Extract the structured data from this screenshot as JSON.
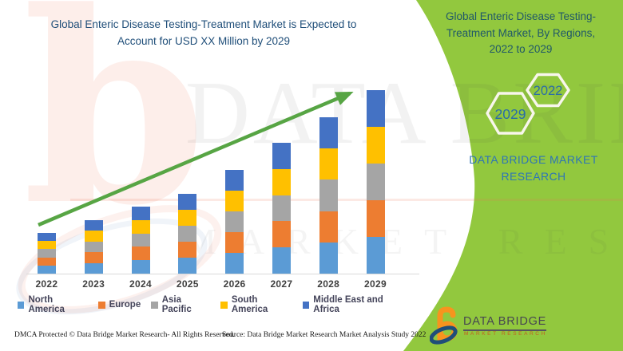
{
  "colors": {
    "panel_green": "#92C83E",
    "trend_green": "#57A544",
    "title_navy": "#1F4E79",
    "region_title_teal": "#215968",
    "brand_blue": "#2E75B6",
    "hex_year_blue": "#2A6CA8",
    "axis_label_gray": "#3F3F3F",
    "logo_orange": "#F7941E",
    "logo_navy": "#1F4E79"
  },
  "header": {
    "title_lines": [
      "Global Enteric Disease Testing-Treatment Market is Expected to",
      "Account for USD XX Million by 2029"
    ]
  },
  "chart_data": {
    "type": "bar",
    "stacked": true,
    "title": "Global Enteric Disease Testing-Treatment Market is Expected to Account for USD XX Million by 2029",
    "categories": [
      "2022",
      "2023",
      "2024",
      "2025",
      "2026",
      "2027",
      "2028",
      "2029"
    ],
    "series": [
      {
        "name": "North America",
        "color": "#5B9BD5",
        "values": [
          10.2,
          13.4,
          16.8,
          20,
          26,
          32.8,
          39.2,
          46
        ]
      },
      {
        "name": "Europe",
        "color": "#ED7D31",
        "values": [
          10.2,
          13.4,
          16.8,
          20,
          26,
          32.8,
          39.2,
          46
        ]
      },
      {
        "name": "Asia Pacific",
        "color": "#A5A5A5",
        "values": [
          10.2,
          13.4,
          16.8,
          20,
          26,
          32.8,
          39.2,
          46
        ]
      },
      {
        "name": "South America",
        "color": "#FFC000",
        "values": [
          10.2,
          13.4,
          16.8,
          20,
          26,
          32.8,
          39.2,
          46
        ]
      },
      {
        "name": "Middle East and Africa",
        "color": "#4472C4",
        "values": [
          10.2,
          13.4,
          16.8,
          20,
          26,
          32.8,
          39.2,
          46
        ]
      }
    ],
    "xlabel": "",
    "ylabel": "",
    "value_axis_visible": false,
    "ylim": [
      0,
      240
    ],
    "grid": false,
    "legend_position": "bottom",
    "trendline": {
      "show": true,
      "direction": "up",
      "color": "#57A544"
    }
  },
  "right_panel": {
    "title_lines": [
      "Global Enteric Disease Testing-",
      "Treatment Market, By Regions,",
      "2022 to 2029"
    ],
    "hex_year_top": "2022",
    "hex_year_bottom": "2029",
    "brand_lines": [
      "DATA BRIDGE MARKET",
      "RESEARCH"
    ]
  },
  "logo": {
    "name": "DATA BRIDGE",
    "tagline": "MARKET RESEARCH"
  },
  "watermark": {
    "letter": "b",
    "brand": "DATA BRIDGE",
    "tagline": "MARKET RESEARCH"
  },
  "footer": {
    "dmca": "DMCA Protected © Data Bridge Market Research- All Rights Reserved.",
    "source": "Source: Data Bridge Market Research Market Analysis Study 2022"
  }
}
